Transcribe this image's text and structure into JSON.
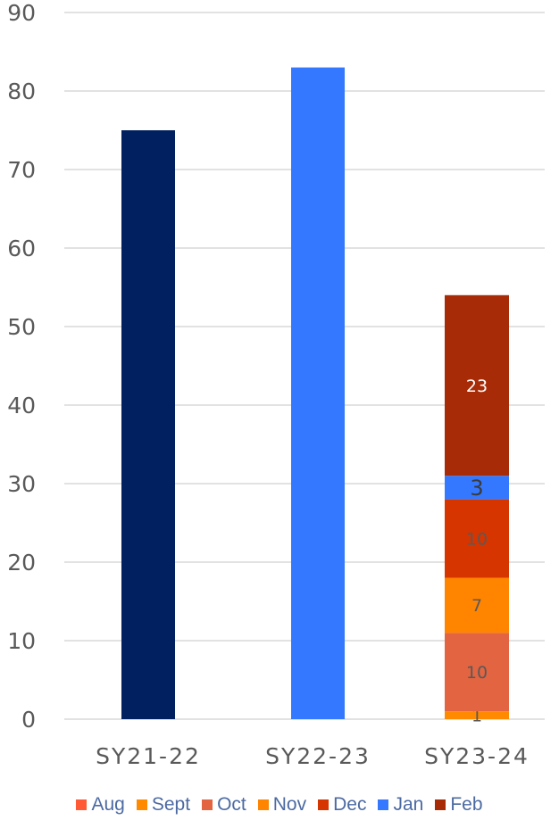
{
  "chart_data": {
    "type": "bar",
    "title": "",
    "xlabel": "",
    "ylabel": "",
    "ylim": [
      0,
      90
    ],
    "yticks": [
      0,
      10,
      20,
      30,
      40,
      50,
      60,
      70,
      80,
      90
    ],
    "grid": true,
    "legend_position": "bottom",
    "categories": [
      "SY21-22",
      "SY22-23",
      "SY23-24"
    ],
    "bars": [
      {
        "category": "SY21-22",
        "value": 75,
        "color": "#002060"
      },
      {
        "category": "SY22-23",
        "value": 83,
        "color": "#3478ff"
      }
    ],
    "stacked_series": [
      {
        "name": "Aug",
        "category": "SY23-24",
        "value": 1,
        "label": "1",
        "color": "#ff8a00",
        "label_color": "#595959"
      },
      {
        "name": "Oct",
        "category": "SY23-24",
        "value": 10,
        "label": "10",
        "color": "#e36440",
        "label_color": "#595959"
      },
      {
        "name": "Nov",
        "category": "SY23-24",
        "value": 7,
        "label": "7",
        "color": "#ff8400",
        "label_color": "#595959"
      },
      {
        "name": "Dec",
        "category": "SY23-24",
        "value": 10,
        "label": "10",
        "color": "#d63500",
        "label_color": "#595959"
      },
      {
        "name": "Jan",
        "category": "SY23-24",
        "value": 3,
        "label": "3",
        "color": "#3478ff",
        "label_color": "#3b3b3b"
      },
      {
        "name": "Feb",
        "category": "SY23-24",
        "value": 23,
        "label": "23",
        "color": "#a82b08",
        "label_color": "#ffffff"
      }
    ],
    "legend": [
      {
        "name": "Aug",
        "color": "#ff5a35"
      },
      {
        "name": "Sept",
        "color": "#ff8a00"
      },
      {
        "name": "Oct",
        "color": "#e36440"
      },
      {
        "name": "Nov",
        "color": "#ff8400"
      },
      {
        "name": "Dec",
        "color": "#d63500"
      },
      {
        "name": "Jan",
        "color": "#3478ff"
      },
      {
        "name": "Feb",
        "color": "#a82b08"
      }
    ],
    "colors": {
      "grid": "#d9d9d9",
      "tick_label": "#595959",
      "legend_text": "#4c6aa2"
    }
  }
}
